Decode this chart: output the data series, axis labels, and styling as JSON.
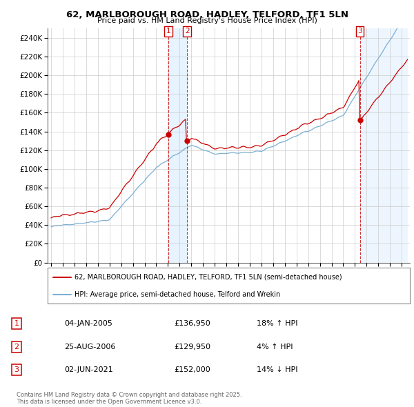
{
  "title": "62, MARLBOROUGH ROAD, HADLEY, TELFORD, TF1 5LN",
  "subtitle": "Price paid vs. HM Land Registry's House Price Index (HPI)",
  "ylim": [
    0,
    250000
  ],
  "yticks": [
    0,
    20000,
    40000,
    60000,
    80000,
    100000,
    120000,
    140000,
    160000,
    180000,
    200000,
    220000,
    240000
  ],
  "sale_dates": [
    2005.04,
    2006.65,
    2021.42
  ],
  "sale_prices": [
    136950,
    129950,
    152000
  ],
  "sale_labels": [
    "1",
    "2",
    "3"
  ],
  "legend_red": "62, MARLBOROUGH ROAD, HADLEY, TELFORD, TF1 5LN (semi-detached house)",
  "legend_blue": "HPI: Average price, semi-detached house, Telford and Wrekin",
  "table_rows": [
    [
      "1",
      "04-JAN-2005",
      "£136,950",
      "18% ↑ HPI"
    ],
    [
      "2",
      "25-AUG-2006",
      "£129,950",
      "4% ↑ HPI"
    ],
    [
      "3",
      "02-JUN-2021",
      "£152,000",
      "14% ↓ HPI"
    ]
  ],
  "footer": "Contains HM Land Registry data © Crown copyright and database right 2025.\nThis data is licensed under the Open Government Licence v3.0.",
  "red_color": "#cc0000",
  "blue_color": "#7bafd4",
  "shade_color": "#ddeeff",
  "grid_color": "#cccccc",
  "background_color": "#ffffff"
}
